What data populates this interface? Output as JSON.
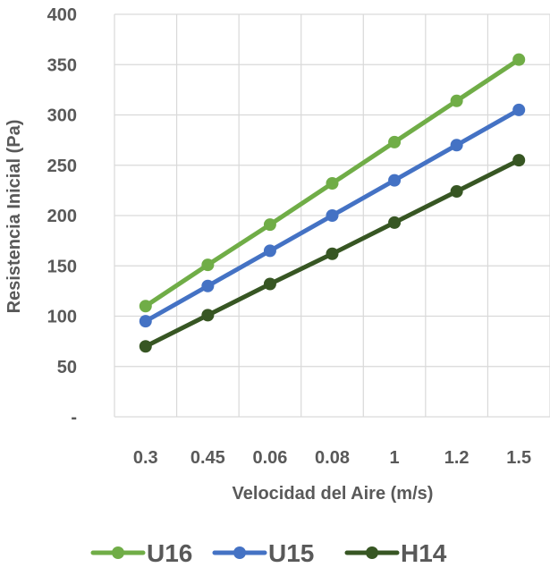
{
  "chart_data": {
    "type": "line",
    "title": "",
    "xlabel": "Velocidad del Aire (m/s)",
    "ylabel": "Resistencia Inicial (Pa)",
    "categories": [
      "0.3",
      "0.45",
      "0.06",
      "0.08",
      "1",
      "1.2",
      "1.5"
    ],
    "y_tick_labels": [
      "-",
      "50",
      "100",
      "150",
      "200",
      "250",
      "300",
      "350",
      "400"
    ],
    "ylim": [
      0,
      400
    ],
    "y_step": 50,
    "grid": true,
    "legend_position": "bottom",
    "series": [
      {
        "name": "U16",
        "color": "#70AD47",
        "values": [
          110,
          151,
          191,
          232,
          273,
          314,
          355
        ]
      },
      {
        "name": "U15",
        "color": "#4472C4",
        "values": [
          95,
          130,
          165,
          200,
          235,
          270,
          305
        ]
      },
      {
        "name": "H14",
        "color": "#375623",
        "values": [
          70,
          101,
          132,
          162,
          193,
          224,
          255
        ]
      }
    ]
  }
}
